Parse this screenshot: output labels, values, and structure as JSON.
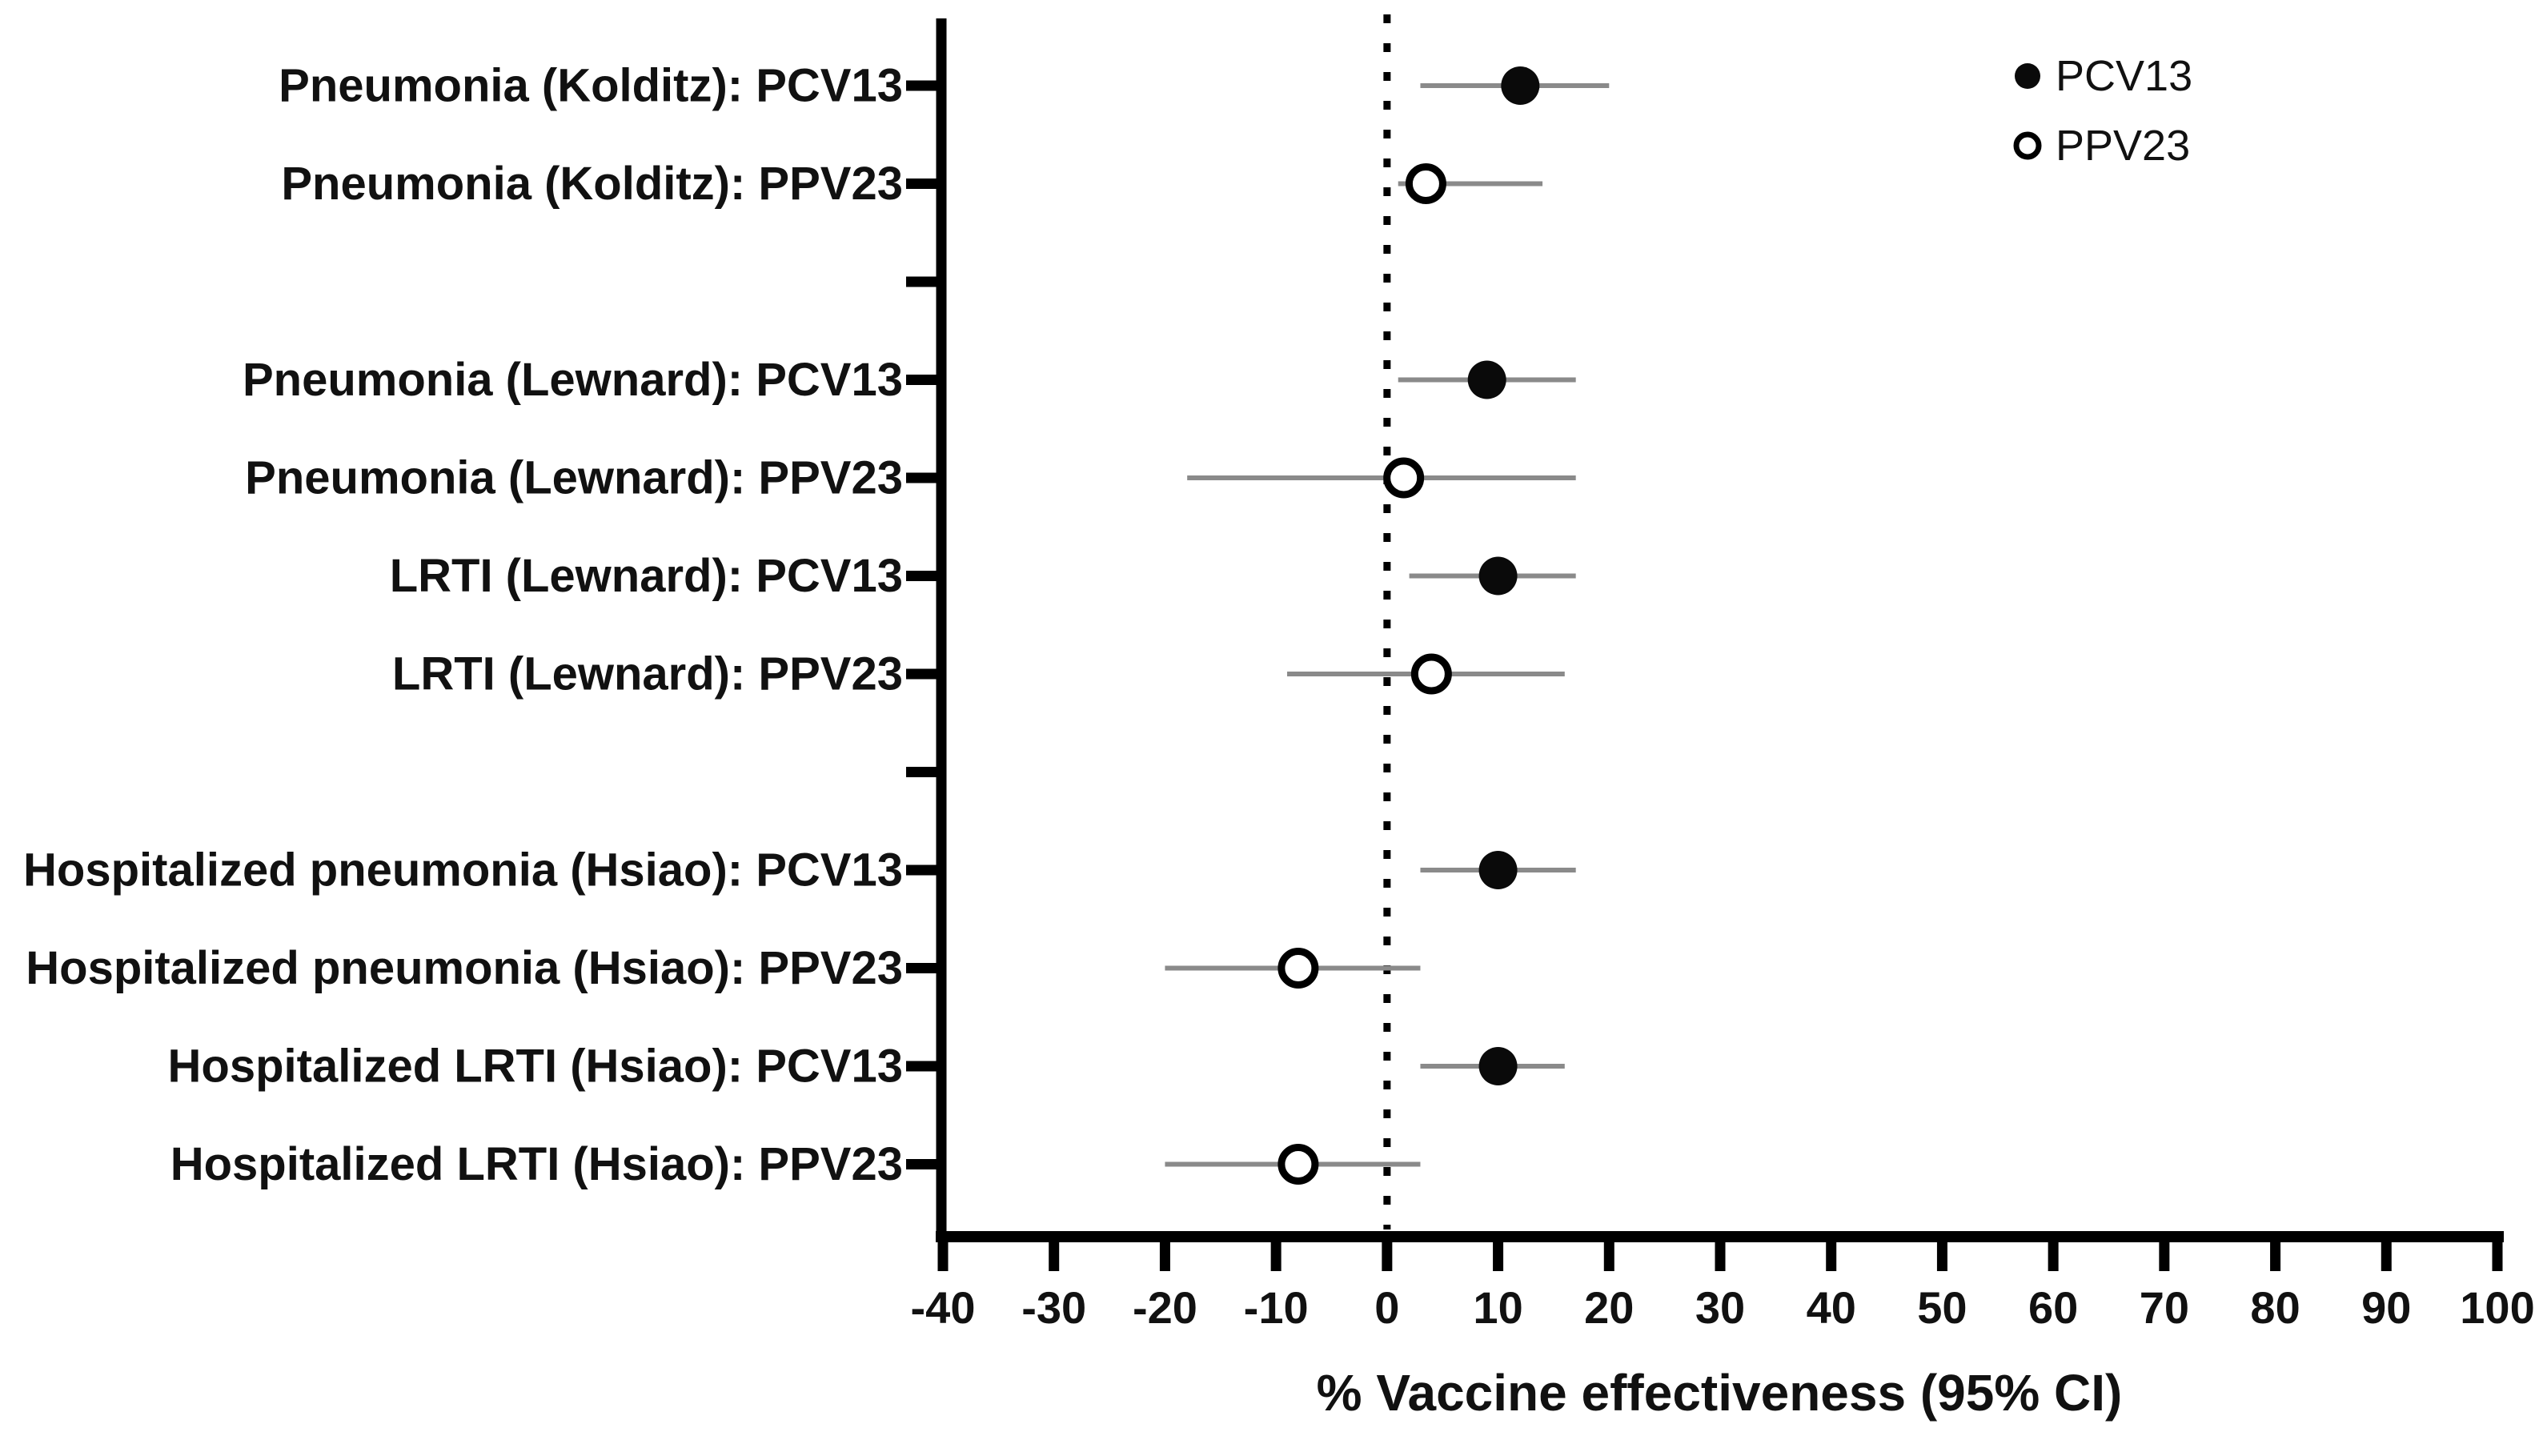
{
  "figure": {
    "background": "#ffffff",
    "colors": {
      "axis": "#000000",
      "text": "#111111",
      "ci_line": "#8a8a8a",
      "marker_filled": "#0a0a0a",
      "marker_open_fill": "#ffffff",
      "reference_line": "#000000"
    }
  },
  "legend": {
    "position": "top-right",
    "items": [
      {
        "label": "PCV13",
        "marker": "filled-circle-icon"
      },
      {
        "label": "PPV23",
        "marker": "open-circle-icon"
      }
    ]
  },
  "chart_data": {
    "type": "scatter",
    "subtype": "forest-plot",
    "title": "",
    "xlabel": "% Vaccine effectiveness (95% CI)",
    "ylabel": "",
    "xlim": [
      -40,
      100
    ],
    "x_ticks": [
      -40,
      -30,
      -20,
      -10,
      0,
      10,
      20,
      30,
      40,
      50,
      60,
      70,
      80,
      90,
      100
    ],
    "x_tick_labels": [
      "-40",
      "-30",
      "-20",
      "-10",
      "0",
      "10",
      "20",
      "30",
      "40",
      "50",
      "60",
      "70",
      "80",
      "90",
      "100"
    ],
    "reference_line_x": 0,
    "grid": false,
    "legend_position": "top-right",
    "series": [
      {
        "name": "PCV13",
        "marker": "filled-circle"
      },
      {
        "name": "PPV23",
        "marker": "open-circle"
      }
    ],
    "rows": [
      {
        "label": "Pneumonia (Kolditz): PCV13",
        "series": "PCV13",
        "value": 12,
        "ci_low": 3,
        "ci_high": 20
      },
      {
        "label": "Pneumonia (Kolditz): PPV23",
        "series": "PPV23",
        "value": 3.5,
        "ci_low": 1,
        "ci_high": 14
      },
      {
        "spacer": true
      },
      {
        "label": "Pneumonia (Lewnard): PCV13",
        "series": "PCV13",
        "value": 9,
        "ci_low": 1,
        "ci_high": 17
      },
      {
        "label": "Pneumonia (Lewnard): PPV23",
        "series": "PPV23",
        "value": 1.5,
        "ci_low": -18,
        "ci_high": 17
      },
      {
        "label": "LRTI (Lewnard): PCV13",
        "series": "PCV13",
        "value": 10,
        "ci_low": 2,
        "ci_high": 17
      },
      {
        "label": "LRTI (Lewnard): PPV23",
        "series": "PPV23",
        "value": 4,
        "ci_low": -9,
        "ci_high": 16
      },
      {
        "spacer": true
      },
      {
        "label": "Hospitalized pneumonia (Hsiao): PCV13",
        "series": "PCV13",
        "value": 10,
        "ci_low": 3,
        "ci_high": 17
      },
      {
        "label": "Hospitalized pneumonia (Hsiao): PPV23",
        "series": "PPV23",
        "value": -8,
        "ci_low": -20,
        "ci_high": 3
      },
      {
        "label": "Hospitalized LRTI (Hsiao): PCV13",
        "series": "PCV13",
        "value": 10,
        "ci_low": 3,
        "ci_high": 16
      },
      {
        "label": "Hospitalized LRTI (Hsiao): PPV23",
        "series": "PPV23",
        "value": -8,
        "ci_low": -20,
        "ci_high": 3
      }
    ]
  }
}
